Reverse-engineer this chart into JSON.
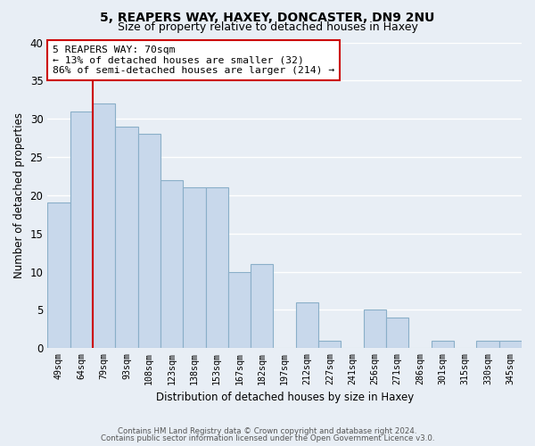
{
  "title1": "5, REAPERS WAY, HAXEY, DONCASTER, DN9 2NU",
  "title2": "Size of property relative to detached houses in Haxey",
  "xlabel": "Distribution of detached houses by size in Haxey",
  "ylabel": "Number of detached properties",
  "bar_color": "#c8d8eb",
  "bar_edge_color": "#8aafc8",
  "bins": [
    "49sqm",
    "64sqm",
    "79sqm",
    "93sqm",
    "108sqm",
    "123sqm",
    "138sqm",
    "153sqm",
    "167sqm",
    "182sqm",
    "197sqm",
    "212sqm",
    "227sqm",
    "241sqm",
    "256sqm",
    "271sqm",
    "286sqm",
    "301sqm",
    "315sqm",
    "330sqm",
    "345sqm"
  ],
  "values": [
    19,
    31,
    32,
    29,
    28,
    22,
    21,
    21,
    10,
    11,
    0,
    6,
    1,
    0,
    5,
    4,
    0,
    1,
    0,
    1,
    1
  ],
  "ylim": [
    0,
    40
  ],
  "yticks": [
    0,
    5,
    10,
    15,
    20,
    25,
    30,
    35,
    40
  ],
  "vline_x": 1.5,
  "vline_color": "#cc0000",
  "annotation_line1": "5 REAPERS WAY: 70sqm",
  "annotation_line2": "← 13% of detached houses are smaller (32)",
  "annotation_line3": "86% of semi-detached houses are larger (214) →",
  "annotation_box_edgecolor": "#cc0000",
  "annotation_box_facecolor": "#ffffff",
  "footer1": "Contains HM Land Registry data © Crown copyright and database right 2024.",
  "footer2": "Contains public sector information licensed under the Open Government Licence v3.0.",
  "background_color": "#e8eef5",
  "grid_color": "#ffffff",
  "title1_fontsize": 10,
  "title2_fontsize": 9
}
